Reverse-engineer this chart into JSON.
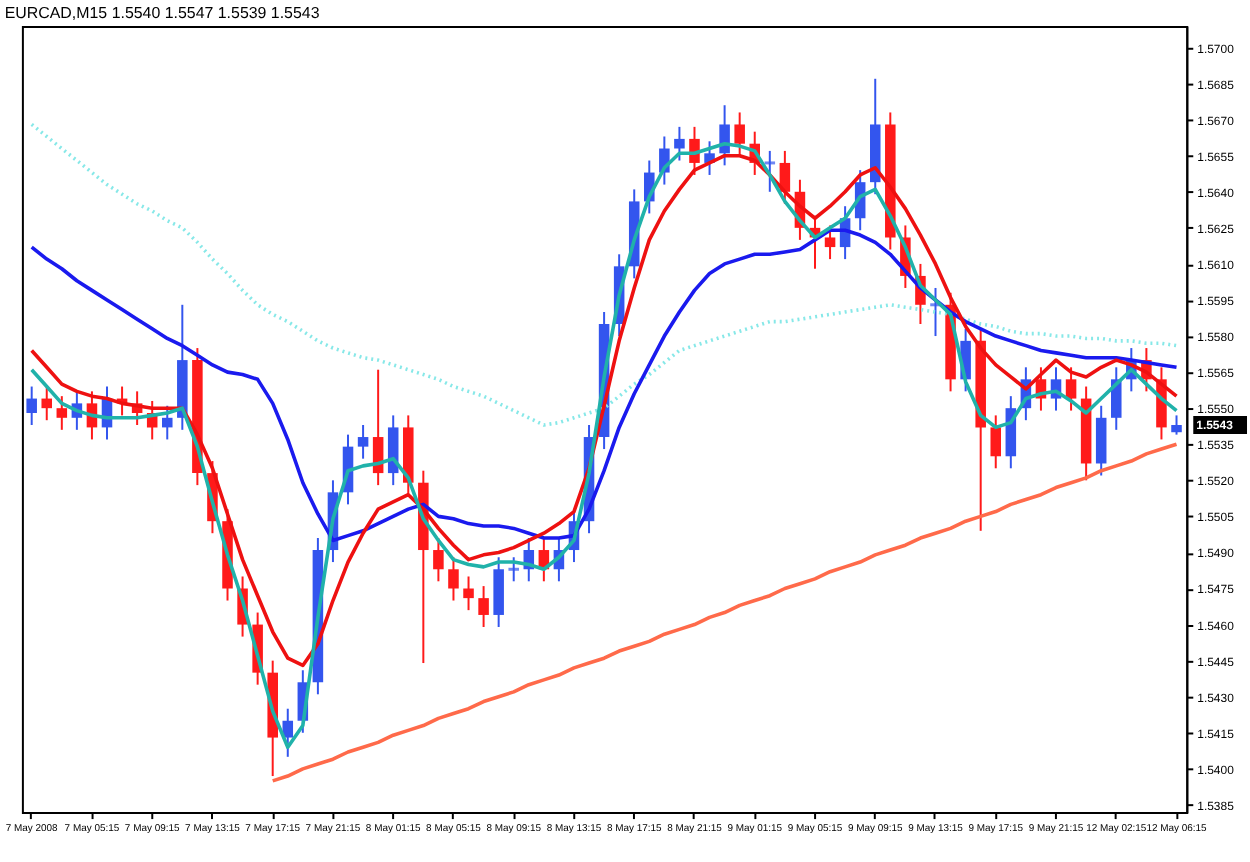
{
  "chart_data": {
    "type": "candlestick",
    "title": "EURCAD,M15  1.5540 1.5547 1.5539 1.5543",
    "categories": [
      "7 May 2008",
      null,
      null,
      null,
      "7 May 05:15",
      null,
      null,
      null,
      "7 May 09:15",
      null,
      null,
      null,
      "7 May 13:15",
      null,
      null,
      null,
      "7 May 17:15",
      null,
      null,
      null,
      "7 May 21:15",
      null,
      null,
      null,
      "8 May 01:15",
      null,
      null,
      null,
      "8 May 05:15",
      null,
      null,
      null,
      "8 May 09:15",
      null,
      null,
      null,
      "8 May 13:15",
      null,
      null,
      null,
      "8 May 17:15",
      null,
      null,
      null,
      "8 May 21:15",
      null,
      null,
      null,
      "9 May 01:15",
      null,
      null,
      null,
      "9 May 05:15",
      null,
      null,
      null,
      "9 May 09:15",
      null,
      null,
      null,
      "9 May 13:15",
      null,
      null,
      null,
      "9 May 17:15",
      null,
      null,
      null,
      "9 May 21:15",
      null,
      null,
      null,
      "12 May 02:15",
      null,
      null,
      null,
      "12 May 06:15"
    ],
    "ohlc": [
      [
        1.5548,
        1.5559,
        1.5543,
        1.5554
      ],
      [
        1.5554,
        1.5559,
        1.5545,
        1.555
      ],
      [
        1.555,
        1.5555,
        1.5541,
        1.5546
      ],
      [
        1.5546,
        1.5557,
        1.5541,
        1.5552
      ],
      [
        1.5552,
        1.5557,
        1.5537,
        1.5542
      ],
      [
        1.5542,
        1.5559,
        1.5537,
        1.5554
      ],
      [
        1.5554,
        1.5559,
        1.5547,
        1.5552
      ],
      [
        1.5552,
        1.5557,
        1.5543,
        1.5548
      ],
      [
        1.5548,
        1.5553,
        1.5537,
        1.5542
      ],
      [
        1.5542,
        1.5551,
        1.5537,
        1.5546
      ],
      [
        1.5546,
        1.5593,
        1.5541,
        1.557
      ],
      [
        1.557,
        1.5575,
        1.5518,
        1.5523
      ],
      [
        1.5523,
        1.5528,
        1.5498,
        1.5503
      ],
      [
        1.5503,
        1.5508,
        1.547,
        1.5475
      ],
      [
        1.5475,
        1.548,
        1.5455,
        1.546
      ],
      [
        1.546,
        1.5465,
        1.5435,
        1.544
      ],
      [
        1.544,
        1.5445,
        1.5397,
        1.5413
      ],
      [
        1.5413,
        1.5425,
        1.5405,
        1.542
      ],
      [
        1.542,
        1.5441,
        1.5415,
        1.5436
      ],
      [
        1.5436,
        1.5496,
        1.5431,
        1.5491
      ],
      [
        1.5491,
        1.552,
        1.5486,
        1.5515
      ],
      [
        1.5515,
        1.5539,
        1.551,
        1.5534
      ],
      [
        1.5534,
        1.5543,
        1.5529,
        1.5538
      ],
      [
        1.5538,
        1.5566,
        1.5518,
        1.5523
      ],
      [
        1.5523,
        1.5547,
        1.5518,
        1.5542
      ],
      [
        1.5542,
        1.5547,
        1.5514,
        1.5519
      ],
      [
        1.5519,
        1.5524,
        1.5444,
        1.5491
      ],
      [
        1.5491,
        1.5496,
        1.5478,
        1.5483
      ],
      [
        1.5483,
        1.5488,
        1.547,
        1.5475
      ],
      [
        1.5475,
        1.548,
        1.5466,
        1.5471
      ],
      [
        1.5471,
        1.5476,
        1.5459,
        1.5464
      ],
      [
        1.5464,
        1.5488,
        1.5459,
        1.5483
      ],
      [
        1.5483,
        1.5488,
        1.5478,
        1.5483
      ],
      [
        1.5483,
        1.5496,
        1.5478,
        1.5491
      ],
      [
        1.5491,
        1.5496,
        1.5478,
        1.5483
      ],
      [
        1.5483,
        1.5496,
        1.5478,
        1.5491
      ],
      [
        1.5491,
        1.5508,
        1.5486,
        1.5503
      ],
      [
        1.5503,
        1.5543,
        1.5498,
        1.5538
      ],
      [
        1.5538,
        1.559,
        1.5533,
        1.5585
      ],
      [
        1.5585,
        1.5614,
        1.558,
        1.5609
      ],
      [
        1.5609,
        1.5641,
        1.5604,
        1.5636
      ],
      [
        1.5636,
        1.5653,
        1.5631,
        1.5648
      ],
      [
        1.5648,
        1.5663,
        1.5643,
        1.5658
      ],
      [
        1.5658,
        1.5667,
        1.5653,
        1.5662
      ],
      [
        1.5662,
        1.5667,
        1.5647,
        1.5652
      ],
      [
        1.5652,
        1.5661,
        1.5647,
        1.5656
      ],
      [
        1.5656,
        1.5676,
        1.5651,
        1.5668
      ],
      [
        1.5668,
        1.5673,
        1.5655,
        1.566
      ],
      [
        1.566,
        1.5665,
        1.5647,
        1.5652
      ],
      [
        1.5652,
        1.5657,
        1.564,
        1.5652
      ],
      [
        1.5652,
        1.5657,
        1.5635,
        1.564
      ],
      [
        1.564,
        1.5645,
        1.562,
        1.5625
      ],
      [
        1.5625,
        1.563,
        1.5608,
        1.5621
      ],
      [
        1.5621,
        1.5626,
        1.5612,
        1.5617
      ],
      [
        1.5617,
        1.5634,
        1.5612,
        1.5629
      ],
      [
        1.5629,
        1.5649,
        1.5624,
        1.5644
      ],
      [
        1.5644,
        1.5687,
        1.5639,
        1.5668
      ],
      [
        1.5668,
        1.5673,
        1.5616,
        1.5621
      ],
      [
        1.5621,
        1.5626,
        1.56,
        1.5605
      ],
      [
        1.5605,
        1.561,
        1.5585,
        1.5593
      ],
      [
        1.5593,
        1.56,
        1.558,
        1.5593
      ],
      [
        1.5593,
        1.5598,
        1.5557,
        1.5562
      ],
      [
        1.5562,
        1.5583,
        1.5557,
        1.5578
      ],
      [
        1.5578,
        1.5583,
        1.5499,
        1.5542
      ],
      [
        1.5542,
        1.5547,
        1.5525,
        1.553
      ],
      [
        1.553,
        1.5555,
        1.5525,
        1.555
      ],
      [
        1.555,
        1.5567,
        1.5545,
        1.5562
      ],
      [
        1.5562,
        1.5567,
        1.5549,
        1.5554
      ],
      [
        1.5554,
        1.5567,
        1.5549,
        1.5562
      ],
      [
        1.5562,
        1.5567,
        1.5549,
        1.5554
      ],
      [
        1.5554,
        1.5559,
        1.552,
        1.5527
      ],
      [
        1.5527,
        1.5551,
        1.5522,
        1.5546
      ],
      [
        1.5546,
        1.5567,
        1.5541,
        1.5562
      ],
      [
        1.5562,
        1.5575,
        1.5557,
        1.557
      ],
      [
        1.557,
        1.5575,
        1.5557,
        1.5562
      ],
      [
        1.5562,
        1.5567,
        1.5537,
        1.5542
      ],
      [
        1.554,
        1.5547,
        1.5539,
        1.5543
      ]
    ],
    "colors": [
      "#3355ee",
      "#ff1a1a",
      "#ff1a1a",
      "#3355ee",
      "#ff1a1a",
      "#3355ee",
      "#ff1a1a",
      "#ff1a1a",
      "#ff1a1a",
      "#3355ee",
      "#3355ee",
      "#ff1a1a",
      "#ff1a1a",
      "#ff1a1a",
      "#ff1a1a",
      "#ff1a1a",
      "#ff1a1a",
      "#3355ee",
      "#3355ee",
      "#3355ee",
      "#3355ee",
      "#3355ee",
      "#3355ee",
      "#ff1a1a",
      "#3355ee",
      "#ff1a1a",
      "#ff1a1a",
      "#ff1a1a",
      "#ff1a1a",
      "#ff1a1a",
      "#ff1a1a",
      "#3355ee",
      "#3355ee",
      "#3355ee",
      "#ff1a1a",
      "#3355ee",
      "#3355ee",
      "#3355ee",
      "#3355ee",
      "#3355ee",
      "#3355ee",
      "#3355ee",
      "#3355ee",
      "#3355ee",
      "#ff1a1a",
      "#3355ee",
      "#3355ee",
      "#ff1a1a",
      "#ff1a1a",
      "#3355ee",
      "#ff1a1a",
      "#ff1a1a",
      "#ff1a1a",
      "#ff1a1a",
      "#3355ee",
      "#3355ee",
      "#3355ee",
      "#ff1a1a",
      "#ff1a1a",
      "#ff1a1a",
      "#3355ee",
      "#ff1a1a",
      "#3355ee",
      "#ff1a1a",
      "#ff1a1a",
      "#3355ee",
      "#3355ee",
      "#ff1a1a",
      "#3355ee",
      "#ff1a1a",
      "#ff1a1a",
      "#3355ee",
      "#3355ee",
      "#3355ee",
      "#ff1a1a",
      "#ff1a1a",
      "#3355ee"
    ],
    "series": [
      {
        "type": "line",
        "color": "#87e8e8",
        "line_style": "dotted",
        "values": [
          1.5668,
          1.5663,
          1.5658,
          1.5653,
          1.5648,
          1.5643,
          1.5639,
          1.5635,
          1.5632,
          1.5628,
          1.5625,
          1.5619,
          1.5612,
          1.5606,
          1.5599,
          1.5593,
          1.5589,
          1.5586,
          1.5582,
          1.5578,
          1.5575,
          1.5573,
          1.5571,
          1.557,
          1.5568,
          1.5566,
          1.5564,
          1.5562,
          1.5559,
          1.5557,
          1.5555,
          1.5552,
          1.5549,
          1.5546,
          1.5543,
          1.5544,
          1.5546,
          1.5548,
          1.555,
          1.5555,
          1.556,
          1.5564,
          1.5569,
          1.5574,
          1.5576,
          1.5578,
          1.558,
          1.5582,
          1.5584,
          1.5586,
          1.5586,
          1.5587,
          1.5588,
          1.5589,
          1.559,
          1.5591,
          1.5592,
          1.5593,
          1.5592,
          1.5591,
          1.559,
          1.5589,
          1.5587,
          1.5585,
          1.5584,
          1.5582,
          1.5581,
          1.5581,
          1.558,
          1.558,
          1.5579,
          1.5579,
          1.5578,
          1.5578,
          1.5577,
          1.5577,
          1.5576
        ]
      },
      {
        "type": "line",
        "color": "#1a1aee",
        "values": [
          1.5617,
          1.5612,
          1.5608,
          1.5603,
          1.5599,
          1.5595,
          1.5591,
          1.5587,
          1.5583,
          1.5579,
          1.5576,
          1.5572,
          1.5568,
          1.5565,
          1.5564,
          1.5562,
          1.5552,
          1.5537,
          1.5519,
          1.5506,
          1.5495,
          1.5497,
          1.5499,
          1.5502,
          1.5505,
          1.5508,
          1.551,
          1.5505,
          1.5504,
          1.5502,
          1.5501,
          1.5501,
          1.55,
          1.5498,
          1.5496,
          1.5496,
          1.5497,
          1.5508,
          1.5524,
          1.5542,
          1.5556,
          1.5568,
          1.558,
          1.559,
          1.5599,
          1.5606,
          1.561,
          1.5612,
          1.5614,
          1.5614,
          1.5615,
          1.5616,
          1.562,
          1.5624,
          1.5624,
          1.5622,
          1.5619,
          1.5614,
          1.5607,
          1.56,
          1.5595,
          1.559,
          1.5586,
          1.5583,
          1.558,
          1.5578,
          1.5576,
          1.5574,
          1.5573,
          1.5572,
          1.5571,
          1.5571,
          1.5571,
          1.557,
          1.5569,
          1.5568,
          1.5567
        ]
      },
      {
        "type": "line",
        "color": "#ee1111",
        "values": [
          1.5574,
          1.5567,
          1.556,
          1.5557,
          1.5555,
          1.5554,
          1.5552,
          1.5551,
          1.555,
          1.555,
          1.555,
          1.5539,
          1.5525,
          1.5506,
          1.5487,
          1.5472,
          1.5457,
          1.5446,
          1.5443,
          1.5452,
          1.547,
          1.5486,
          1.5498,
          1.5508,
          1.5511,
          1.5514,
          1.5508,
          1.55,
          1.5493,
          1.5487,
          1.5489,
          1.549,
          1.5492,
          1.5495,
          1.5498,
          1.5502,
          1.5507,
          1.5525,
          1.5551,
          1.5578,
          1.56,
          1.562,
          1.5632,
          1.5641,
          1.5649,
          1.5652,
          1.5655,
          1.5655,
          1.5653,
          1.5647,
          1.564,
          1.5634,
          1.5629,
          1.5634,
          1.564,
          1.5647,
          1.565,
          1.5642,
          1.5633,
          1.5622,
          1.561,
          1.5596,
          1.5584,
          1.5575,
          1.5568,
          1.5563,
          1.5558,
          1.5564,
          1.557,
          1.5565,
          1.5563,
          1.5567,
          1.557,
          1.5568,
          1.5565,
          1.556,
          1.5555
        ]
      },
      {
        "type": "line",
        "color": "#20b2aa",
        "values": [
          1.5566,
          1.5559,
          1.5552,
          1.5549,
          1.5547,
          1.5546,
          1.5546,
          1.5546,
          1.5547,
          1.5548,
          1.555,
          1.5534,
          1.5511,
          1.5489,
          1.547,
          1.5447,
          1.5424,
          1.5409,
          1.5418,
          1.5463,
          1.5504,
          1.5524,
          1.5526,
          1.5527,
          1.5529,
          1.5521,
          1.5504,
          1.5495,
          1.5487,
          1.5485,
          1.5484,
          1.5486,
          1.5486,
          1.5485,
          1.5483,
          1.5488,
          1.5495,
          1.5523,
          1.5563,
          1.5597,
          1.562,
          1.5638,
          1.565,
          1.5656,
          1.5656,
          1.5658,
          1.566,
          1.5659,
          1.5657,
          1.5647,
          1.5636,
          1.5628,
          1.5621,
          1.5625,
          1.5629,
          1.5638,
          1.5641,
          1.563,
          1.5617,
          1.5601,
          1.5595,
          1.5589,
          1.5561,
          1.5547,
          1.5542,
          1.5544,
          1.5554,
          1.5556,
          1.5557,
          1.5553,
          1.5548,
          1.5554,
          1.556,
          1.5566,
          1.556,
          1.5554,
          1.5549
        ]
      },
      {
        "type": "line",
        "color": "#ff6a4a",
        "values": [
          null,
          null,
          null,
          null,
          null,
          null,
          null,
          null,
          null,
          null,
          null,
          null,
          null,
          null,
          null,
          null,
          1.5395,
          1.5397,
          1.54,
          1.5402,
          1.5404,
          1.5407,
          1.5409,
          1.5411,
          1.5414,
          1.5416,
          1.5418,
          1.5421,
          1.5423,
          1.5425,
          1.5428,
          1.543,
          1.5432,
          1.5435,
          1.5437,
          1.5439,
          1.5442,
          1.5444,
          1.5446,
          1.5449,
          1.5451,
          1.5453,
          1.5456,
          1.5458,
          1.546,
          1.5463,
          1.5465,
          1.5468,
          1.547,
          1.5472,
          1.5475,
          1.5477,
          1.5479,
          1.5482,
          1.5484,
          1.5486,
          1.5489,
          1.5491,
          1.5493,
          1.5496,
          1.5498,
          1.55,
          1.5503,
          1.5505,
          1.5507,
          1.551,
          1.5512,
          1.5514,
          1.5517,
          1.5519,
          1.5521,
          1.5524,
          1.5526,
          1.5528,
          1.5531,
          1.5533,
          1.5535
        ]
      }
    ],
    "ylim": [
      1.5382,
      1.5709
    ],
    "yticks": [
      1.5385,
      {
        "value": 1.54,
        "label": "1.5400"
      },
      1.5415,
      {
        "value": 1.543,
        "label": "1.5430"
      },
      1.5445,
      {
        "value": 1.546,
        "label": "1.5460"
      },
      1.5475,
      {
        "value": 1.549,
        "label": "1.5490"
      },
      1.5505,
      {
        "value": 1.552,
        "label": "1.5520"
      },
      1.5535,
      {
        "value": 1.555,
        "label": "1.5550"
      },
      1.5565,
      {
        "value": 1.558,
        "label": "1.5580"
      },
      1.5595,
      {
        "value": 1.561,
        "label": "1.5610"
      },
      1.5625,
      {
        "value": 1.564,
        "label": "1.5640"
      },
      1.5655,
      {
        "value": 1.567,
        "label": "1.5670"
      },
      1.5685,
      {
        "value": 1.57,
        "label": "1.5700"
      }
    ],
    "annotations": [
      "1.5543"
    ],
    "grid": false
  }
}
